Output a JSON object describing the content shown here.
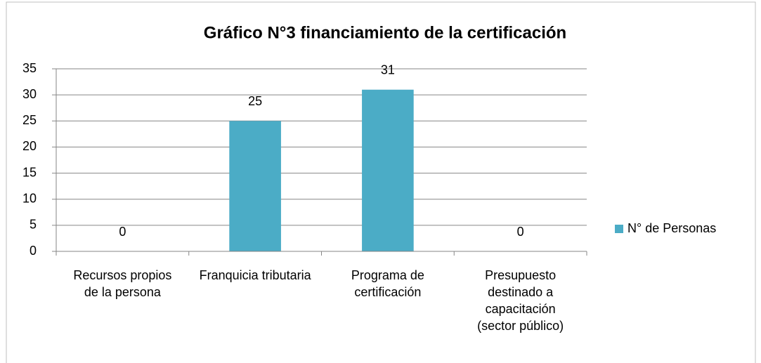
{
  "chart_data": {
    "type": "bar",
    "title": "Gráfico N°3 financiamiento de la certificación",
    "categories": [
      "Recursos propios de la persona",
      "Franquicia tributaria",
      "Programa de certificación",
      "Presupuesto destinado a capacitación (sector público)"
    ],
    "series": [
      {
        "name": "N° de Personas",
        "color": "#4bacc6",
        "values": [
          0,
          25,
          31,
          0
        ]
      }
    ],
    "ylim": [
      0,
      35
    ],
    "yticks": [
      0,
      5,
      10,
      15,
      20,
      25,
      30,
      35
    ],
    "grid": true,
    "legend": "right"
  }
}
